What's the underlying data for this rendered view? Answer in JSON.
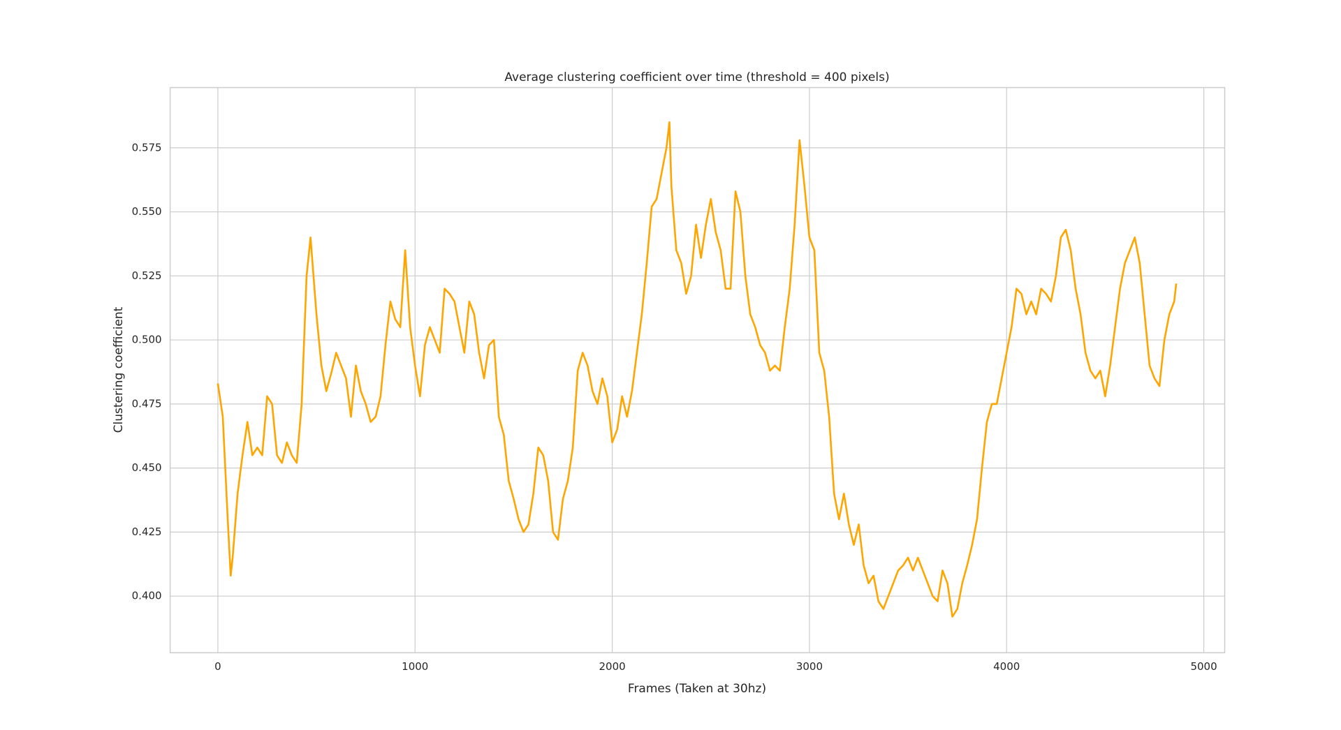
{
  "chart_data": {
    "type": "line",
    "title": "Average clustering coefficient over time (threshold = 400 pixels)",
    "xlabel": "Frames (Taken at 30hz)",
    "ylabel": "Clustering coefficient",
    "color": "#ffa500",
    "grid": true,
    "xlim": [
      -242,
      5106
    ],
    "ylim": [
      0.3779,
      0.5985
    ],
    "xticks": [
      0,
      1000,
      2000,
      3000,
      4000,
      5000
    ],
    "yticks": [
      {
        "value": 0.4,
        "label": "0.400"
      },
      0.425,
      {
        "value": 0.45,
        "label": "0.450"
      },
      0.475,
      {
        "value": 0.5,
        "label": "0.500"
      },
      0.525,
      {
        "value": 0.55,
        "label": "0.550"
      },
      0.575
    ],
    "x": [
      0,
      25,
      50,
      65,
      75,
      100,
      125,
      150,
      175,
      200,
      225,
      250,
      275,
      300,
      325,
      350,
      375,
      400,
      425,
      450,
      470,
      500,
      525,
      550,
      575,
      600,
      625,
      650,
      675,
      700,
      725,
      750,
      775,
      800,
      825,
      850,
      875,
      900,
      925,
      950,
      975,
      1000,
      1025,
      1050,
      1075,
      1100,
      1125,
      1150,
      1175,
      1200,
      1225,
      1250,
      1275,
      1300,
      1325,
      1350,
      1375,
      1400,
      1425,
      1450,
      1475,
      1500,
      1525,
      1550,
      1575,
      1600,
      1625,
      1650,
      1675,
      1700,
      1725,
      1750,
      1775,
      1800,
      1825,
      1850,
      1875,
      1900,
      1925,
      1950,
      1975,
      2000,
      2025,
      2050,
      2075,
      2100,
      2125,
      2150,
      2175,
      2200,
      2225,
      2250,
      2275,
      2290,
      2300,
      2325,
      2350,
      2375,
      2400,
      2425,
      2450,
      2475,
      2500,
      2525,
      2550,
      2575,
      2600,
      2625,
      2650,
      2675,
      2700,
      2725,
      2750,
      2775,
      2800,
      2825,
      2850,
      2875,
      2900,
      2925,
      2950,
      2975,
      3000,
      3025,
      3050,
      3075,
      3100,
      3125,
      3150,
      3175,
      3200,
      3225,
      3250,
      3275,
      3300,
      3325,
      3350,
      3375,
      3400,
      3425,
      3450,
      3475,
      3500,
      3525,
      3550,
      3575,
      3600,
      3625,
      3650,
      3675,
      3700,
      3725,
      3750,
      3775,
      3800,
      3825,
      3850,
      3875,
      3900,
      3925,
      3950,
      3975,
      4000,
      4025,
      4050,
      4075,
      4100,
      4125,
      4150,
      4175,
      4200,
      4225,
      4250,
      4275,
      4300,
      4325,
      4350,
      4375,
      4400,
      4425,
      4450,
      4475,
      4500,
      4525,
      4550,
      4575,
      4600,
      4625,
      4650,
      4675,
      4700,
      4725,
      4750,
      4775,
      4800,
      4825,
      4850,
      4860
    ],
    "values": [
      0.483,
      0.47,
      0.43,
      0.408,
      0.415,
      0.44,
      0.455,
      0.468,
      0.455,
      0.458,
      0.455,
      0.478,
      0.475,
      0.455,
      0.452,
      0.46,
      0.455,
      0.452,
      0.475,
      0.525,
      0.54,
      0.51,
      0.49,
      0.48,
      0.487,
      0.495,
      0.49,
      0.485,
      0.47,
      0.49,
      0.48,
      0.475,
      0.468,
      0.47,
      0.478,
      0.498,
      0.515,
      0.508,
      0.505,
      0.535,
      0.505,
      0.49,
      0.478,
      0.498,
      0.505,
      0.5,
      0.495,
      0.52,
      0.518,
      0.515,
      0.505,
      0.495,
      0.515,
      0.51,
      0.495,
      0.485,
      0.498,
      0.5,
      0.47,
      0.463,
      0.445,
      0.438,
      0.43,
      0.425,
      0.428,
      0.44,
      0.458,
      0.455,
      0.445,
      0.425,
      0.422,
      0.438,
      0.445,
      0.458,
      0.488,
      0.495,
      0.49,
      0.48,
      0.475,
      0.485,
      0.478,
      0.46,
      0.465,
      0.478,
      0.47,
      0.48,
      0.495,
      0.51,
      0.53,
      0.552,
      0.555,
      0.565,
      0.575,
      0.585,
      0.56,
      0.535,
      0.53,
      0.518,
      0.525,
      0.545,
      0.532,
      0.545,
      0.555,
      0.542,
      0.535,
      0.52,
      0.52,
      0.558,
      0.55,
      0.525,
      0.51,
      0.505,
      0.498,
      0.495,
      0.488,
      0.49,
      0.488,
      0.505,
      0.52,
      0.545,
      0.578,
      0.56,
      0.54,
      0.535,
      0.495,
      0.488,
      0.47,
      0.44,
      0.43,
      0.44,
      0.428,
      0.42,
      0.428,
      0.412,
      0.405,
      0.408,
      0.398,
      0.395,
      0.4,
      0.405,
      0.41,
      0.412,
      0.415,
      0.41,
      0.415,
      0.41,
      0.405,
      0.4,
      0.398,
      0.41,
      0.405,
      0.392,
      0.395,
      0.405,
      0.412,
      0.42,
      0.43,
      0.45,
      0.468,
      0.475,
      0.475,
      0.485,
      0.495,
      0.505,
      0.52,
      0.518,
      0.51,
      0.515,
      0.51,
      0.52,
      0.518,
      0.515,
      0.525,
      0.54,
      0.543,
      0.535,
      0.52,
      0.51,
      0.495,
      0.488,
      0.485,
      0.488,
      0.478,
      0.49,
      0.505,
      0.52,
      0.53,
      0.535,
      0.54,
      0.53,
      0.51,
      0.49,
      0.485,
      0.482,
      0.5,
      0.51,
      0.515,
      0.522
    ]
  }
}
